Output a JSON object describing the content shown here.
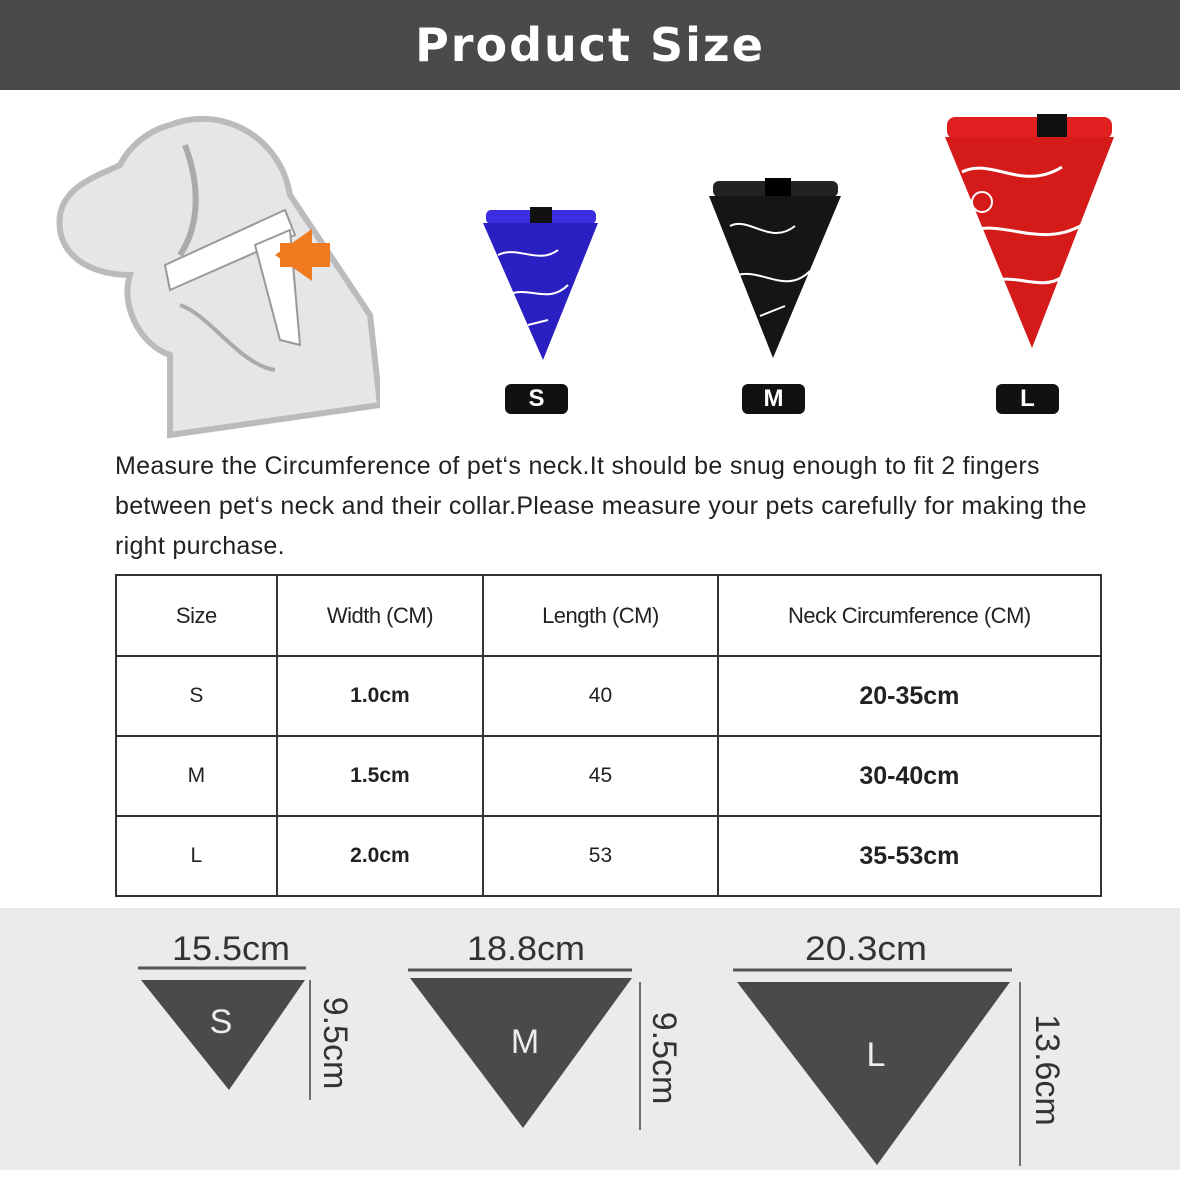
{
  "header": {
    "title": "Product Size"
  },
  "products": [
    {
      "size": "S",
      "color": "#2a1fc0"
    },
    {
      "size": "M",
      "color": "#151515"
    },
    {
      "size": "L",
      "color": "#d51a1a"
    }
  ],
  "colors": {
    "header_bg": "#4a4a4a",
    "arrow": "#f07a20",
    "triangle": "#4a4a4a",
    "band_bg": "#ebebeb"
  },
  "description": "Measure the Circumference of pet‘s neck.It should be snug enough to fit 2 fingers between pet‘s neck and their collar.Please measure your pets carefully for making the right purchase.",
  "table": {
    "headers": [
      "Size",
      "Width (CM)",
      "Length (CM)",
      "Neck Circumference (CM)"
    ],
    "rows": [
      [
        "S",
        "1.0cm",
        "40",
        "20-35cm"
      ],
      [
        "M",
        "1.5cm",
        "45",
        "30-40cm"
      ],
      [
        "L",
        "2.0cm",
        "53",
        "35-53cm"
      ]
    ]
  },
  "dimensions": [
    {
      "size": "S",
      "width": "15.5cm",
      "height": "9.5cm"
    },
    {
      "size": "M",
      "width": "18.8cm",
      "height": "9.5cm"
    },
    {
      "size": "L",
      "width": "20.3cm",
      "height": "13.6cm"
    }
  ]
}
